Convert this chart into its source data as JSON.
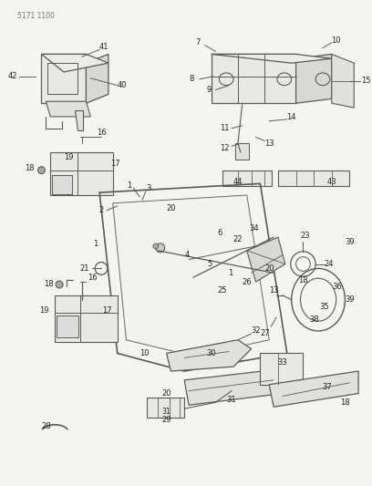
{
  "bg_color": "#f5f5f0",
  "line_color": "#5a5a5a",
  "text_color": "#222222",
  "fig_width": 4.08,
  "fig_height": 5.33,
  "dpi": 100
}
